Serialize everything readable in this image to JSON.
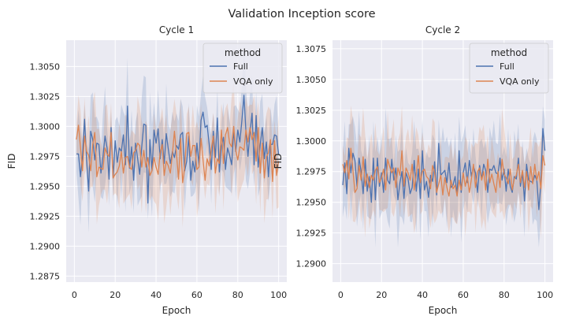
{
  "figure": {
    "title": "Validation Inception score"
  },
  "colors": {
    "panel_bg": "#EAEAF2",
    "grid": "#FFFFFF",
    "full": "#4C72B0",
    "vqa": "#DD8452",
    "text": "#262626"
  },
  "chart_data": [
    {
      "type": "line",
      "title": "Cycle 1",
      "xlabel": "Epoch",
      "ylabel": "FID",
      "xlim": [
        -4,
        104
      ],
      "ylim": [
        1.287,
        1.3072
      ],
      "xticks": [
        0,
        20,
        40,
        60,
        80,
        100
      ],
      "xtick_labels": [
        "0",
        "20",
        "40",
        "60",
        "80",
        "100"
      ],
      "yticks": [
        1.2875,
        1.29,
        1.2925,
        1.295,
        1.2975,
        1.3,
        1.3025,
        1.305
      ],
      "ytick_labels": [
        "1.2875",
        "1.2900",
        "1.2925",
        "1.2950",
        "1.2975",
        "1.3000",
        "1.3025",
        "1.3050"
      ],
      "grid": true,
      "legend": {
        "title": "method",
        "position": "top-right",
        "entries": [
          "Full",
          "VQA only"
        ]
      },
      "x_start": 1,
      "x_end": 100,
      "series": [
        {
          "name": "Full",
          "color": "#4C72B0",
          "values": [
            1.2977,
            1.2977,
            1.2958,
            1.2975,
            1.3006,
            1.2972,
            1.2946,
            1.2996,
            1.2989,
            1.2972,
            1.2986,
            1.2985,
            1.2961,
            1.2975,
            1.2992,
            1.2982,
            1.2956,
            1.2999,
            1.2957,
            1.2988,
            1.297,
            1.2982,
            1.2979,
            1.2993,
            1.2968,
            1.3017,
            1.2965,
            1.2983,
            1.2955,
            1.2986,
            1.2973,
            1.296,
            1.2983,
            1.3002,
            1.3001,
            1.2936,
            1.2989,
            1.2963,
            1.2997,
            1.2986,
            1.2998,
            1.2973,
            1.2989,
            1.2969,
            1.2994,
            1.2981,
            1.2969,
            1.2979,
            1.2974,
            1.2984,
            1.2981,
            1.2993,
            1.2995,
            1.2963,
            1.2971,
            1.2992,
            1.2955,
            1.2971,
            1.2962,
            1.2986,
            1.2968,
            1.3005,
            1.3012,
            1.2999,
            1.3001,
            1.2985,
            1.2964,
            1.2996,
            1.2974,
            1.3007,
            1.2962,
            1.2983,
            1.2991,
            1.2964,
            1.2982,
            1.2976,
            1.2968,
            1.2996,
            1.2979,
            1.2997,
            1.2987,
            1.3005,
            1.3026,
            1.2996,
            1.2975,
            1.2995,
            1.3011,
            1.2968,
            1.3009,
            1.2966,
            1.2985,
            1.2999,
            1.2973,
            1.2987,
            1.2958,
            1.2985,
            1.2985,
            1.2993,
            1.2992,
            1.2977
          ]
        },
        {
          "name": "VQA only",
          "color": "#DD8452",
          "values": [
            1.2989,
            1.3001,
            1.2983,
            1.2963,
            1.2992,
            1.2979,
            1.2976,
            1.2963,
            1.2985,
            1.2995,
            1.2958,
            1.2966,
            1.2965,
            1.2964,
            1.2982,
            1.2977,
            1.2975,
            1.2995,
            1.2957,
            1.296,
            1.2962,
            1.2967,
            1.2979,
            1.2961,
            1.2974,
            1.2975,
            1.2966,
            1.2964,
            1.2978,
            1.298,
            1.2986,
            1.2984,
            1.2966,
            1.298,
            1.2966,
            1.2974,
            1.2959,
            1.2963,
            1.2974,
            1.2966,
            1.296,
            1.2978,
            1.2985,
            1.2959,
            1.2971,
            1.2967,
            1.2961,
            1.2977,
            1.2996,
            1.2977,
            1.2956,
            1.299,
            1.2953,
            1.2966,
            1.2994,
            1.2995,
            1.2975,
            1.2984,
            1.2984,
            1.2964,
            1.2966,
            1.299,
            1.2972,
            1.2955,
            1.2973,
            1.2967,
            1.2981,
            1.2992,
            1.2961,
            1.2973,
            1.2969,
            1.2997,
            1.2969,
            1.2993,
            1.2999,
            1.2986,
            1.2983,
            1.3,
            1.298,
            1.2972,
            1.2983,
            1.2982,
            1.298,
            1.2997,
            1.2987,
            1.2999,
            1.2989,
            1.2995,
            1.2971,
            1.2999,
            1.2961,
            1.2986,
            1.2957,
            1.2975,
            1.2978,
            1.2989,
            1.2954,
            1.2988,
            1.2959,
            1.2971
          ]
        }
      ]
    },
    {
      "type": "line",
      "title": "Cycle 2",
      "xlabel": "Epoch",
      "ylabel": "FID",
      "xlim": [
        -4,
        104
      ],
      "ylim": [
        1.2885,
        1.3082
      ],
      "xticks": [
        0,
        20,
        40,
        60,
        80,
        100
      ],
      "xtick_labels": [
        "0",
        "20",
        "40",
        "60",
        "80",
        "100"
      ],
      "yticks": [
        1.29,
        1.2925,
        1.295,
        1.2975,
        1.3,
        1.3025,
        1.305,
        1.3075
      ],
      "ytick_labels": [
        "1.2900",
        "1.2925",
        "1.2950",
        "1.2975",
        "1.3000",
        "1.3025",
        "1.3050",
        "1.3075"
      ],
      "grid": true,
      "legend": {
        "title": "method",
        "position": "top-right",
        "entries": [
          "Full",
          "VQA only"
        ]
      },
      "x_start": 1,
      "x_end": 100,
      "series": [
        {
          "name": "Full",
          "color": "#4C72B0",
          "values": [
            1.2964,
            1.2982,
            1.2957,
            1.2994,
            1.2974,
            1.299,
            1.2984,
            1.2963,
            1.2986,
            1.2975,
            1.2957,
            1.2985,
            1.2959,
            1.2971,
            1.295,
            1.2986,
            1.2952,
            1.2986,
            1.2963,
            1.2974,
            1.2958,
            1.2986,
            1.2968,
            1.2965,
            1.2985,
            1.2968,
            1.2978,
            1.2952,
            1.2966,
            1.2975,
            1.2953,
            1.2974,
            1.2969,
            1.2957,
            1.2962,
            1.2984,
            1.2959,
            1.2977,
            1.2953,
            1.2992,
            1.296,
            1.2967,
            1.2954,
            1.2972,
            1.2967,
            1.2983,
            1.2956,
            1.2998,
            1.2972,
            1.2974,
            1.2976,
            1.2966,
            1.2982,
            1.2962,
            1.2964,
            1.2971,
            1.2956,
            1.2992,
            1.2958,
            1.2974,
            1.2982,
            1.2966,
            1.2984,
            1.2971,
            1.2979,
            1.2974,
            1.2958,
            1.298,
            1.2969,
            1.2981,
            1.2976,
            1.2958,
            1.2977,
            1.2976,
            1.298,
            1.2974,
            1.2973,
            1.2986,
            1.2968,
            1.2977,
            1.2959,
            1.2977,
            1.2963,
            1.2958,
            1.2971,
            1.2969,
            1.2986,
            1.2963,
            1.2974,
            1.2951,
            1.2981,
            1.2968,
            1.2967,
            1.2966,
            1.2972,
            1.2968,
            1.2944,
            1.2965,
            1.301,
            1.2992
          ]
        },
        {
          "name": "VQA only",
          "color": "#DD8452",
          "values": [
            1.2981,
            1.2974,
            1.2984,
            1.2969,
            1.2994,
            1.2976,
            1.2958,
            1.2961,
            1.298,
            1.2968,
            1.2987,
            1.2963,
            1.2973,
            1.2962,
            1.2972,
            1.2968,
            1.2976,
            1.2979,
            1.2966,
            1.297,
            1.2977,
            1.296,
            1.2985,
            1.2979,
            1.2974,
            1.2978,
            1.2962,
            1.2978,
            1.2972,
            1.2992,
            1.2963,
            1.2978,
            1.2974,
            1.2968,
            1.2981,
            1.296,
            1.2973,
            1.2988,
            1.2966,
            1.2975,
            1.2977,
            1.2971,
            1.2969,
            1.2961,
            1.298,
            1.2974,
            1.2958,
            1.2965,
            1.2972,
            1.2956,
            1.297,
            1.2962,
            1.2955,
            1.2968,
            1.2961,
            1.2964,
            1.2955,
            1.2968,
            1.296,
            1.2974,
            1.2963,
            1.2971,
            1.2958,
            1.2969,
            1.2981,
            1.2962,
            1.2975,
            1.2978,
            1.2968,
            1.2975,
            1.296,
            1.2985,
            1.2966,
            1.2973,
            1.2965,
            1.2958,
            1.2975,
            1.2962,
            1.2985,
            1.2973,
            1.297,
            1.2965,
            1.2977,
            1.296,
            1.2969,
            1.2972,
            1.2981,
            1.2966,
            1.2976,
            1.2962,
            1.2975,
            1.296,
            1.2979,
            1.2965,
            1.2981,
            1.2968,
            1.2975,
            1.2961,
            1.2988,
            1.298
          ]
        }
      ]
    }
  ]
}
